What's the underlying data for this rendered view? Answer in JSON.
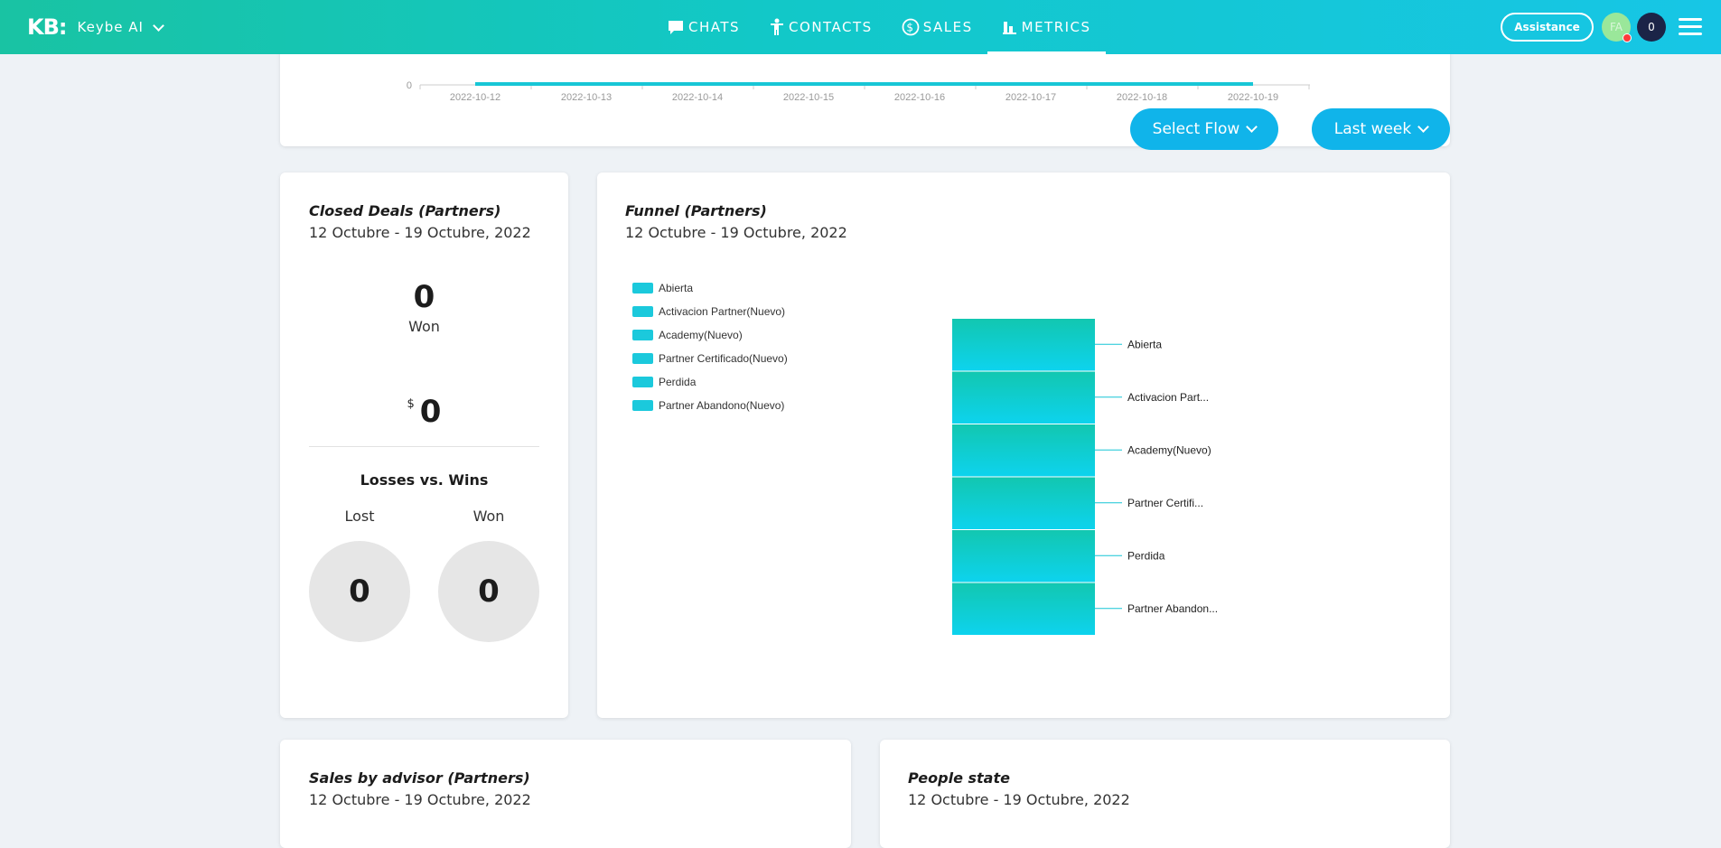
{
  "brand": {
    "logo": "KB:",
    "name": "Keybe AI"
  },
  "nav": [
    {
      "label": "CHATS",
      "icon": "chat-icon"
    },
    {
      "label": "CONTACTS",
      "icon": "person-icon"
    },
    {
      "label": "SALES",
      "icon": "dollar-icon"
    },
    {
      "label": "METRICS",
      "icon": "bar-chart-icon",
      "active": true
    }
  ],
  "header": {
    "assistance_label": "Assistance",
    "avatar_initials": "FA",
    "notification_count": "0"
  },
  "top_chart": {
    "y_tick": "0",
    "dates": [
      "2022-10-12",
      "2022-10-13",
      "2022-10-14",
      "2022-10-15",
      "2022-10-16",
      "2022-10-17",
      "2022-10-18",
      "2022-10-19"
    ]
  },
  "filters": {
    "flow_label": "Select Flow",
    "period_label": "Last week"
  },
  "closed_deals": {
    "title": "Closed Deals (Partners)",
    "date_range": "12 Octubre - 19 Octubre, 2022",
    "won_count": "0",
    "won_label": "Won",
    "currency": "$",
    "amount": "0",
    "losses_vs_wins_title": "Losses vs. Wins",
    "lost_label": "Lost",
    "lost_value": "0",
    "won_label2": "Won",
    "won_value": "0"
  },
  "funnel": {
    "title": "Funnel (Partners)",
    "date_range": "12 Octubre - 19 Octubre, 2022"
  },
  "chart_data": {
    "type": "funnel",
    "stages": [
      {
        "name": "Abierta",
        "label": "Abierta"
      },
      {
        "name": "Activacion Partner(Nuevo)",
        "label": "Activacion Part..."
      },
      {
        "name": "Academy(Nuevo)",
        "label": "Academy(Nuevo)"
      },
      {
        "name": "Partner Certificado(Nuevo)",
        "label": "Partner Certifi..."
      },
      {
        "name": "Perdida",
        "label": "Perdida"
      },
      {
        "name": "Partner Abandono(Nuevo)",
        "label": "Partner Abandon..."
      }
    ],
    "legend": [
      "Abierta",
      "Activacion Partner(Nuevo)",
      "Academy(Nuevo)",
      "Partner Certificado(Nuevo)",
      "Perdida",
      "Partner Abandono(Nuevo)"
    ],
    "color_top": "#12c7b0",
    "color_bottom": "#0dd3ee"
  },
  "sales_by_advisor": {
    "title": "Sales by advisor (Partners)",
    "date_range": "12 Octubre - 19 Octubre, 2022"
  },
  "people_state": {
    "title": "People state",
    "date_range": "12 Octubre - 19 Octubre, 2022"
  },
  "colors": {
    "accent": "#10b4ea",
    "nav_gradient_start": "#19c3a3",
    "nav_gradient_end": "#17c6e6"
  }
}
